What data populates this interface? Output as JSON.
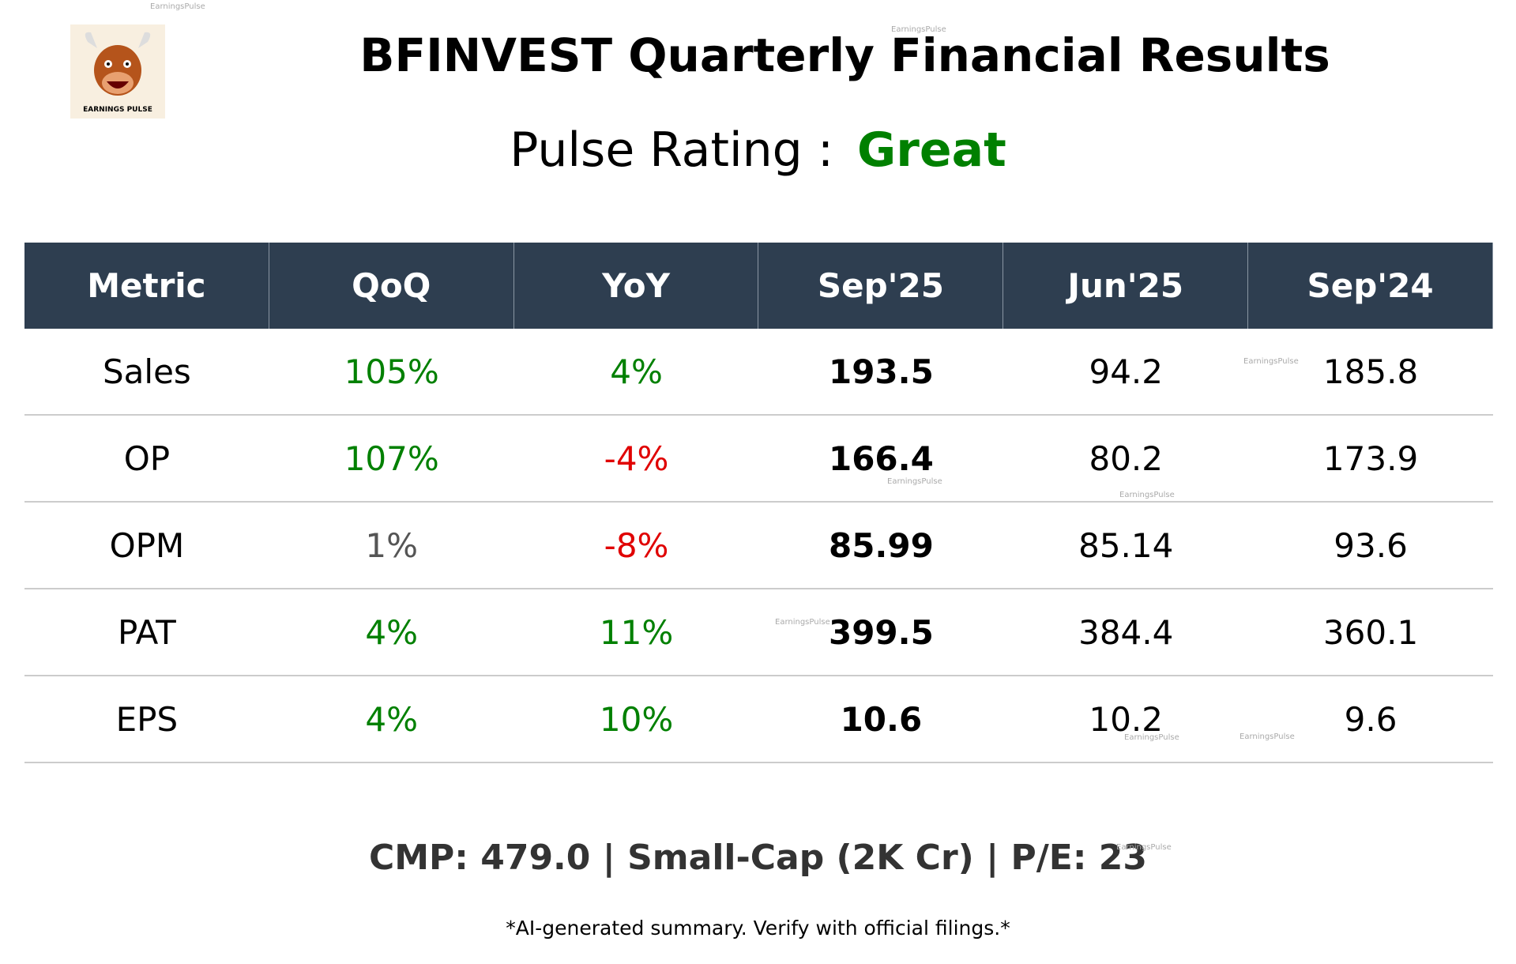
{
  "header": {
    "title": "BFINVEST Quarterly Financial Results",
    "rating_label": "Pulse Rating :",
    "rating": "Great",
    "logo_text": "EARNINGS PULSE"
  },
  "table": {
    "columns": [
      "Metric",
      "QoQ",
      "YoY",
      "Sep'25",
      "Jun'25",
      "Sep'24"
    ],
    "rows": [
      [
        "Sales",
        "105%",
        "4%",
        "193.5",
        "94.2",
        "185.8"
      ],
      [
        "OP",
        "107%",
        "-4%",
        "166.4",
        "80.2",
        "173.9"
      ],
      [
        "OPM",
        "1%",
        "-8%",
        "85.99",
        "85.14",
        "93.6"
      ],
      [
        "PAT",
        "4%",
        "11%",
        "399.5",
        "384.4",
        "360.1"
      ],
      [
        "EPS",
        "4%",
        "10%",
        "10.6",
        "10.2",
        "9.6"
      ]
    ],
    "colors": [
      [
        "#000000",
        "#008000",
        "#008000",
        "#000000",
        "#000000",
        "#000000"
      ],
      [
        "#000000",
        "#008000",
        "#e00000",
        "#000000",
        "#000000",
        "#000000"
      ],
      [
        "#000000",
        "#555555",
        "#e00000",
        "#000000",
        "#000000",
        "#000000"
      ],
      [
        "#000000",
        "#008000",
        "#008000",
        "#000000",
        "#000000",
        "#000000"
      ],
      [
        "#000000",
        "#008000",
        "#008000",
        "#000000",
        "#000000",
        "#000000"
      ]
    ]
  },
  "footer": {
    "market": "CMP: 479.0 | Small-Cap (2K Cr) | P/E: 23",
    "disclaimer": "*AI-generated summary. Verify with official filings.*"
  },
  "watermarks": [
    "EarningsPulse",
    "EarningsPulse",
    "EarningsPulse",
    "EarningsPulse",
    "EarningsPulse",
    "EarningsPulse",
    "EarningsPulse",
    "EarningsPulse",
    "EarningsPulse"
  ]
}
